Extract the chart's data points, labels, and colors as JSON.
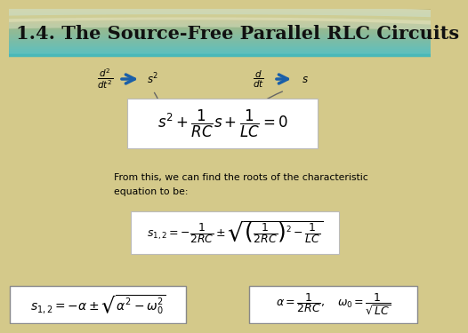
{
  "title": "1.4. The Source-Free Parallel RLC Circuits",
  "title_fontsize": 15,
  "title_bg_top": "#5bbfbf",
  "title_bg_bottom": "#c8b86a",
  "title_color": "#1a1a1a",
  "body_bg": "#d4c98a",
  "arrow_color": "#1a5fa8",
  "text_color": "black",
  "annotation_text": "From this, we can find the roots of the characteristic\nequation to be:",
  "eq1": "s^2 + \\dfrac{1}{RC}s + \\dfrac{1}{LC} = 0",
  "eq2": "s_{1,2} = -\\dfrac{1}{2RC} \\pm \\sqrt{\\left(\\dfrac{1}{2RC}\\right)^2 - \\dfrac{1}{LC}}",
  "eq3": "s_{1,2} = -\\alpha \\pm \\sqrt{\\alpha^2 - \\omega_0^2}",
  "eq4": "\\alpha = \\dfrac{1}{2RC}, \\quad \\omega_0 = \\dfrac{1}{\\sqrt{LC}}"
}
